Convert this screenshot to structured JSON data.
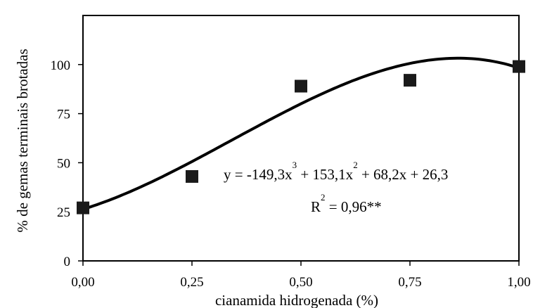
{
  "chart_data": {
    "type": "scatter",
    "title": "",
    "xlabel": "cianamida hidrogenada (%)",
    "ylabel": "% de gemas terminais brotadas",
    "xlim": [
      0,
      1
    ],
    "ylim": [
      0,
      125
    ],
    "x_ticks": [
      "0,00",
      "0,25",
      "0,50",
      "0,75",
      "1,00"
    ],
    "x_tick_values": [
      0,
      0.25,
      0.5,
      0.75,
      1.0
    ],
    "y_ticks": [
      "0",
      "25",
      "50",
      "75",
      "100"
    ],
    "y_tick_values": [
      0,
      25,
      50,
      75,
      100
    ],
    "grid": false,
    "series": [
      {
        "type": "scatter",
        "marker": "square",
        "x": [
          0,
          0.25,
          0.5,
          0.75,
          1.0
        ],
        "y": [
          27,
          43,
          89,
          92,
          99
        ]
      },
      {
        "type": "line",
        "fit": "cubic",
        "coefficients": [
          -149.3,
          153.1,
          68.2,
          26.3
        ]
      }
    ],
    "annotation": {
      "eq_prefix": "y = -149,3x",
      "eq_exp1": "3",
      "eq_mid": " + 153,1x",
      "eq_exp2": "2",
      "eq_suffix": " + 68,2x + 26,3",
      "r2_prefix": "R",
      "r2_exp": "2",
      "r2_suffix": " = 0,96**"
    },
    "colors": {
      "line": "#000000",
      "marker": "#1a1a1a"
    }
  }
}
